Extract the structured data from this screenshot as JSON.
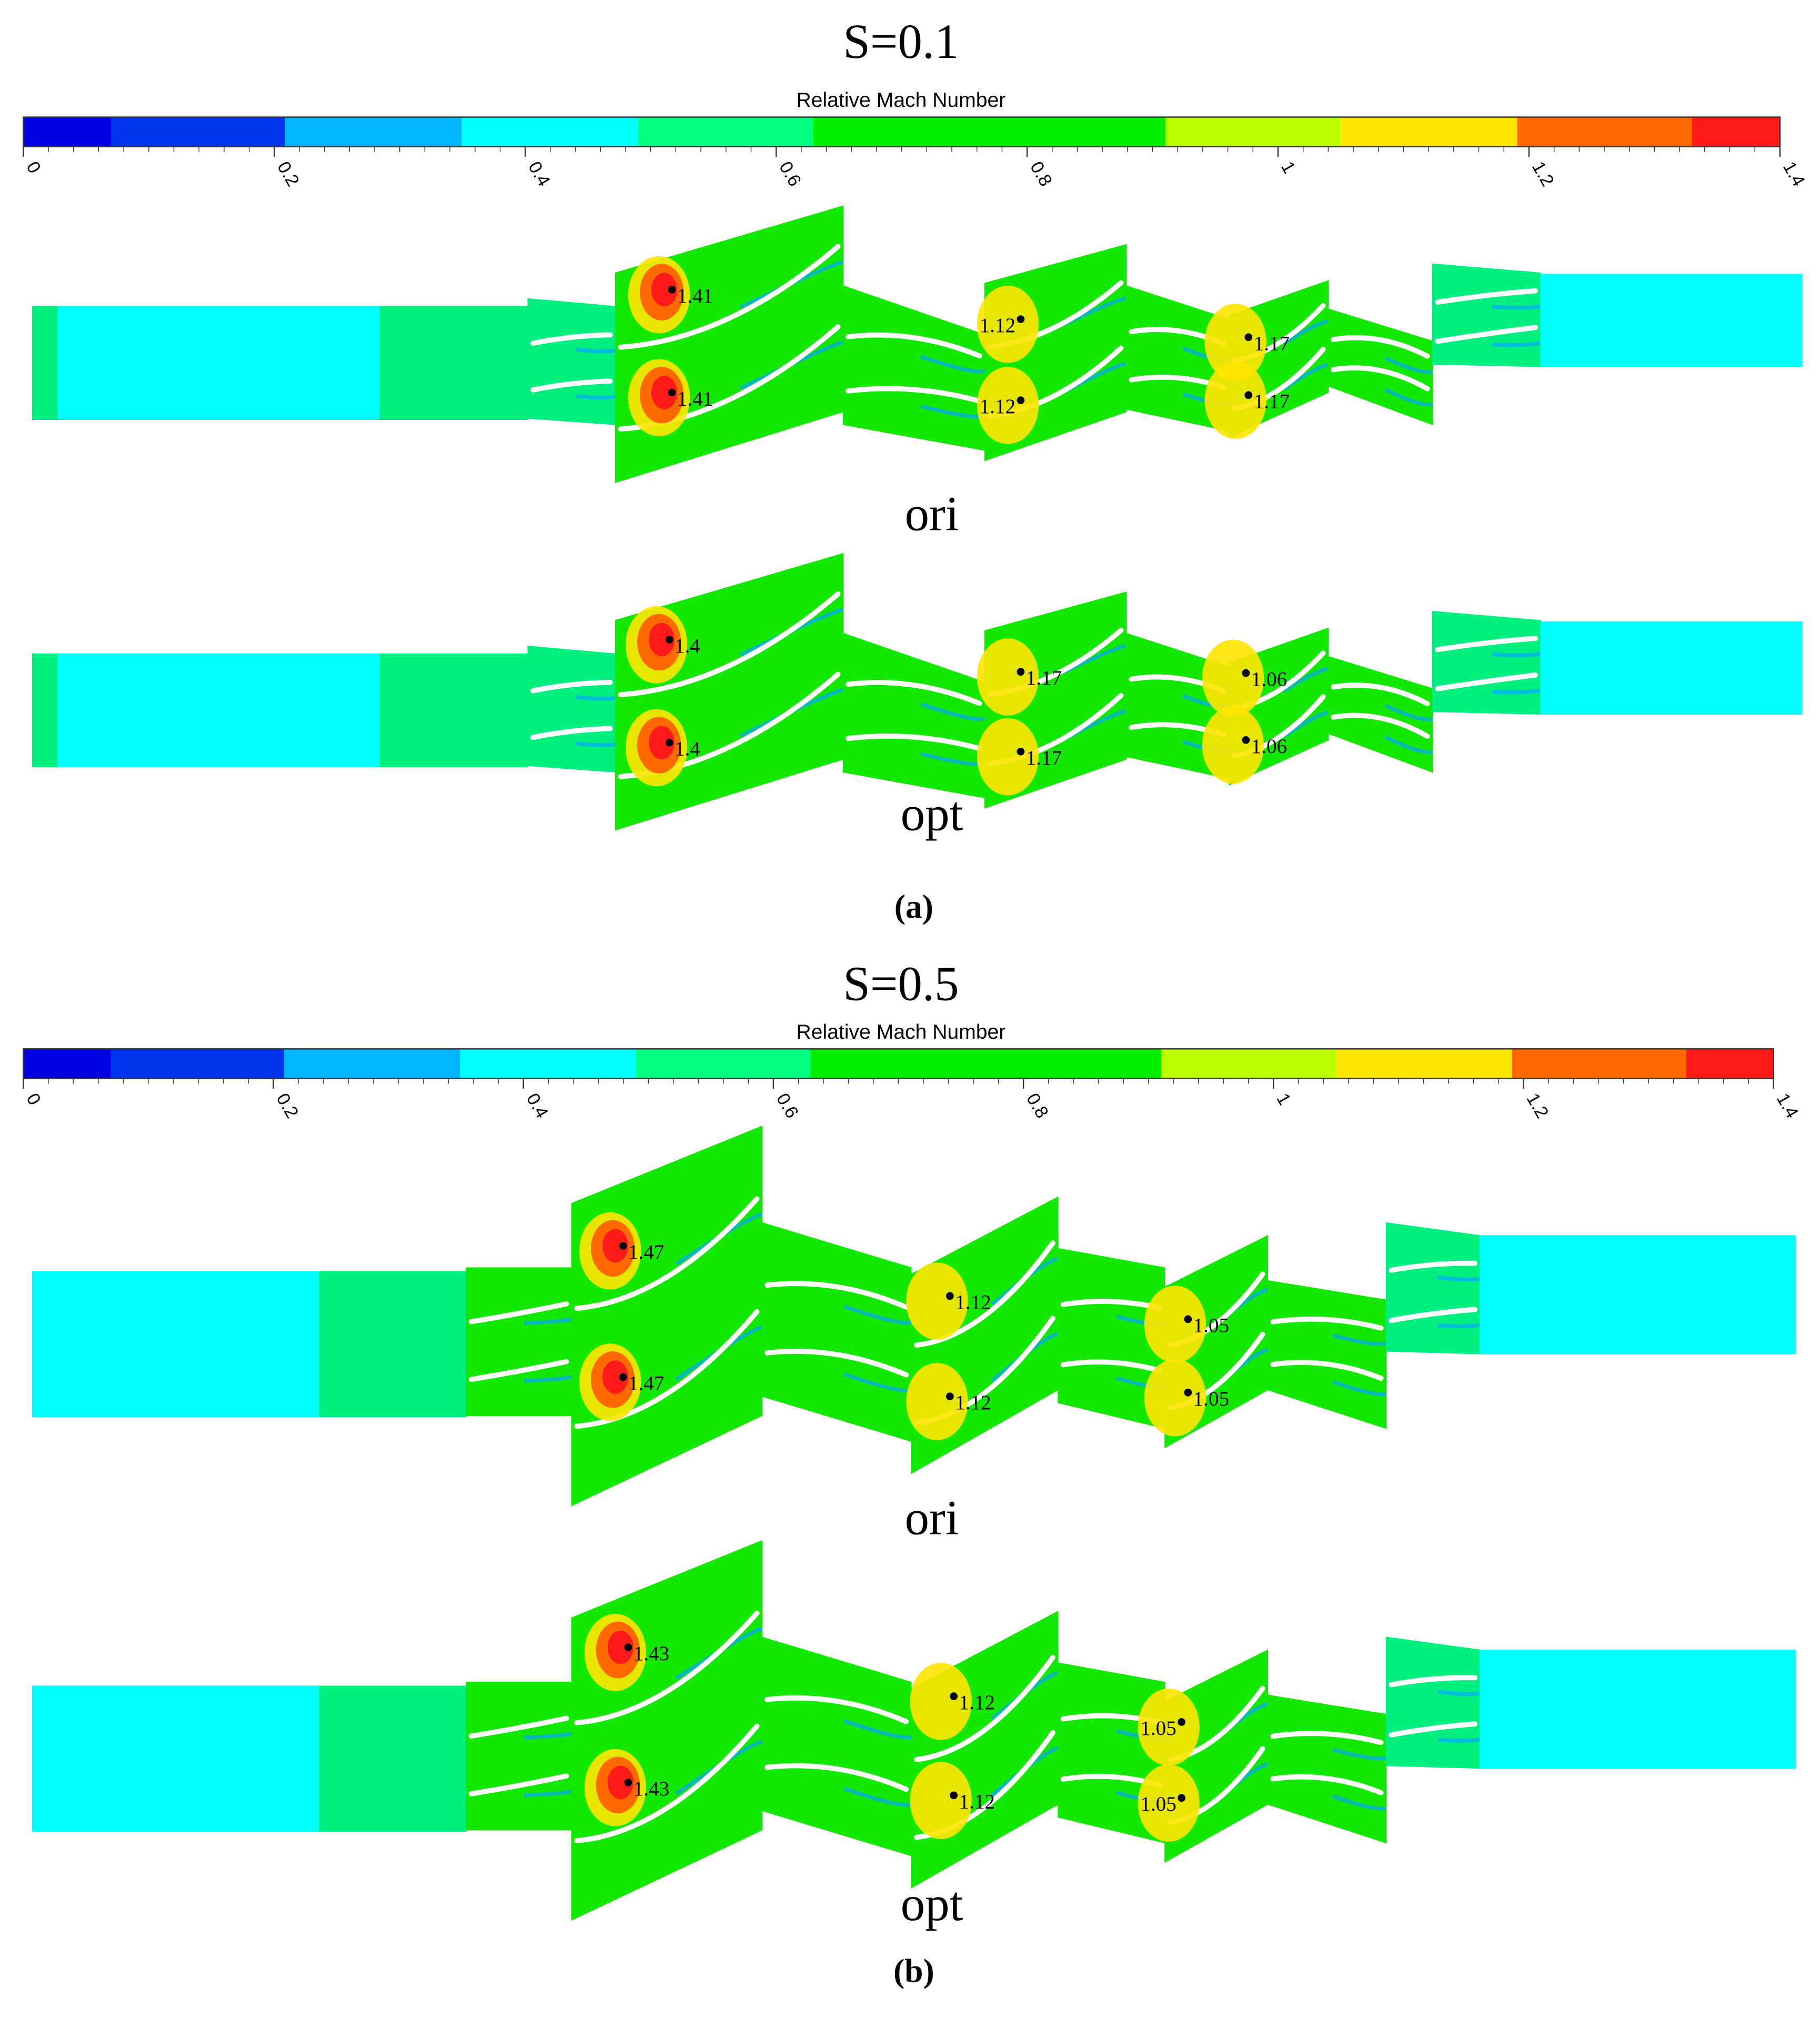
{
  "panels": [
    {
      "title": "S=0.1",
      "colorbar": {
        "label": "Relative Mach Number",
        "ticks": [
          "0",
          "0.2",
          "0.4",
          "0.6",
          "0.8",
          "1",
          "1.2",
          "1.4"
        ]
      },
      "rows": [
        {
          "label": "ori",
          "annotations": [
            "1.41",
            "1.41",
            "1.12",
            "1.12",
            "1.17",
            "1.17"
          ]
        },
        {
          "label": "opt",
          "annotations": [
            "1.4",
            "1.4",
            "1.17",
            "1.17",
            "1.06",
            "1.06"
          ]
        }
      ],
      "caption": "(a)"
    },
    {
      "title": "S=0.5",
      "colorbar": {
        "label": "Relative Mach Number",
        "ticks": [
          "0",
          "0.2",
          "0.4",
          "0.6",
          "0.8",
          "1",
          "1.2",
          "1.4"
        ]
      },
      "rows": [
        {
          "label": "ori",
          "annotations": [
            "1.47",
            "1.47",
            "1.12",
            "1.12",
            "1.05",
            "1.05"
          ]
        },
        {
          "label": "opt",
          "annotations": [
            "1.43",
            "1.43",
            "1.12",
            "1.12",
            "1.05",
            "1.05"
          ]
        }
      ],
      "caption": "(b)"
    }
  ]
}
